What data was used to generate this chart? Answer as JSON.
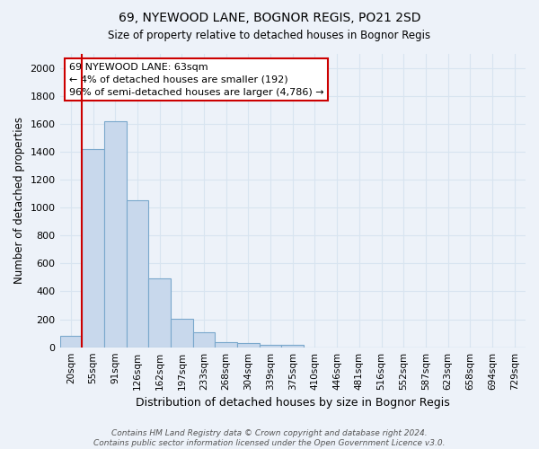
{
  "title1": "69, NYEWOOD LANE, BOGNOR REGIS, PO21 2SD",
  "title2": "Size of property relative to detached houses in Bognor Regis",
  "xlabel": "Distribution of detached houses by size in Bognor Regis",
  "ylabel": "Number of detached properties",
  "categories": [
    "20sqm",
    "55sqm",
    "91sqm",
    "126sqm",
    "162sqm",
    "197sqm",
    "233sqm",
    "268sqm",
    "304sqm",
    "339sqm",
    "375sqm",
    "410sqm",
    "446sqm",
    "481sqm",
    "516sqm",
    "552sqm",
    "587sqm",
    "623sqm",
    "658sqm",
    "694sqm",
    "729sqm"
  ],
  "bar_heights": [
    80,
    1420,
    1620,
    1050,
    490,
    205,
    105,
    38,
    28,
    20,
    15,
    0,
    0,
    0,
    0,
    0,
    0,
    0,
    0,
    0,
    0
  ],
  "bar_color": "#c8d8ec",
  "bar_edge_color": "#7aa8cc",
  "background_color": "#edf2f9",
  "grid_color": "#d8e4f0",
  "annotation_text": "69 NYEWOOD LANE: 63sqm\n← 4% of detached houses are smaller (192)\n96% of semi-detached houses are larger (4,786) →",
  "annotation_box_color": "#ffffff",
  "annotation_box_edge": "#cc0000",
  "ylim": [
    0,
    2100
  ],
  "yticks": [
    0,
    200,
    400,
    600,
    800,
    1000,
    1200,
    1400,
    1600,
    1800,
    2000
  ],
  "footnote": "Contains HM Land Registry data © Crown copyright and database right 2024.\nContains public sector information licensed under the Open Government Licence v3.0.",
  "red_line_x": 1.5,
  "red_line_color": "#cc0000"
}
